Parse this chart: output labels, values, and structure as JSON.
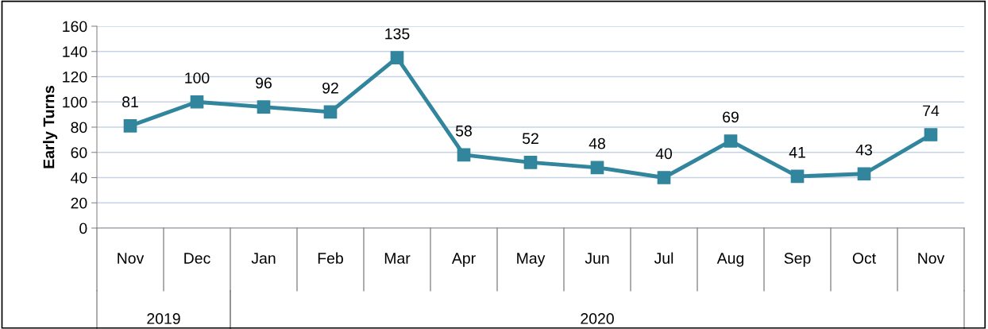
{
  "chart_data": {
    "type": "line",
    "ylabel": "Early Turns",
    "categories": [
      "Nov",
      "Dec",
      "Jan",
      "Feb",
      "Mar",
      "Apr",
      "May",
      "Jun",
      "Jul",
      "Aug",
      "Sep",
      "Oct",
      "Nov"
    ],
    "series": [
      {
        "color": "#31859c",
        "values": [
          81,
          100,
          96,
          92,
          135,
          58,
          52,
          48,
          40,
          69,
          41,
          43,
          74
        ]
      }
    ],
    "ylim": [
      0,
      160
    ],
    "yticks": [
      0,
      20,
      40,
      60,
      80,
      100,
      120,
      140,
      160
    ],
    "grid": "y",
    "marker": "square",
    "line_style": "solid",
    "data_labels": true,
    "annotations": [
      "2019",
      "2020"
    ]
  }
}
